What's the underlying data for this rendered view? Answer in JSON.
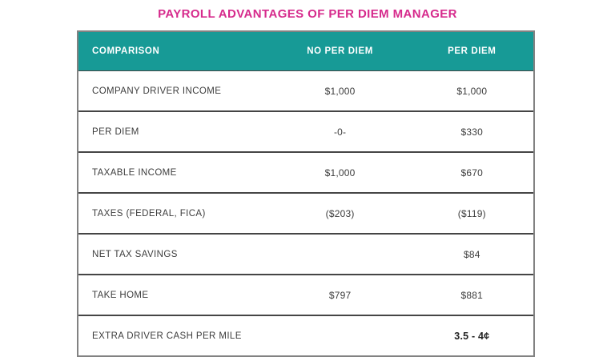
{
  "page": {
    "title": "PAYROLL ADVANTAGES OF PER DIEM MANAGER"
  },
  "colors": {
    "title_pink": "#d62a8c",
    "header_teal": "#179a96",
    "outer_border_gray": "#828282",
    "row_divider_dark": "#454545",
    "text_dark": "#3d3d3d"
  },
  "table": {
    "header": {
      "comparison": "COMPARISON",
      "no_per_diem": "NO PER DIEM",
      "per_diem": "PER DIEM"
    },
    "rows": [
      {
        "label": "COMPANY DRIVER INCOME",
        "no_per_diem": "$1,000",
        "per_diem": "$1,000"
      },
      {
        "label": "PER DIEM",
        "no_per_diem": "-0-",
        "per_diem": "$330"
      },
      {
        "label": "TAXABLE INCOME",
        "no_per_diem": "$1,000",
        "per_diem": "$670"
      },
      {
        "label": "TAXES (FEDERAL, FICA)",
        "no_per_diem": "($203)",
        "per_diem": "($119)"
      },
      {
        "label": "NET TAX SAVINGS",
        "no_per_diem": "",
        "per_diem": "$84"
      },
      {
        "label": "TAKE HOME",
        "no_per_diem": "$797",
        "per_diem": "$881"
      },
      {
        "label": "EXTRA DRIVER CASH PER MILE",
        "no_per_diem": "",
        "per_diem": "3.5 - 4¢"
      }
    ]
  },
  "chart_data": {
    "type": "table",
    "title": "PAYROLL ADVANTAGES OF PER DIEM MANAGER",
    "columns": [
      "COMPARISON",
      "NO PER DIEM",
      "PER DIEM"
    ],
    "rows": [
      [
        "COMPANY DRIVER INCOME",
        "$1,000",
        "$1,000"
      ],
      [
        "PER DIEM",
        "-0-",
        "$330"
      ],
      [
        "TAXABLE INCOME",
        "$1,000",
        "$670"
      ],
      [
        "TAXES (FEDERAL, FICA)",
        "($203)",
        "($119)"
      ],
      [
        "NET TAX SAVINGS",
        "",
        "$84"
      ],
      [
        "TAKE HOME",
        "$797",
        "$881"
      ],
      [
        "EXTRA DRIVER CASH PER MILE",
        "",
        "3.5 - 4¢"
      ]
    ],
    "notes": {
      "no_per_diem_numeric": [
        1000,
        0,
        1000,
        -203,
        null,
        797,
        null
      ],
      "per_diem_numeric": [
        1000,
        330,
        670,
        -119,
        84,
        881,
        null
      ],
      "extra_driver_cash_per_mile_cents": [
        3.5,
        4
      ]
    }
  }
}
